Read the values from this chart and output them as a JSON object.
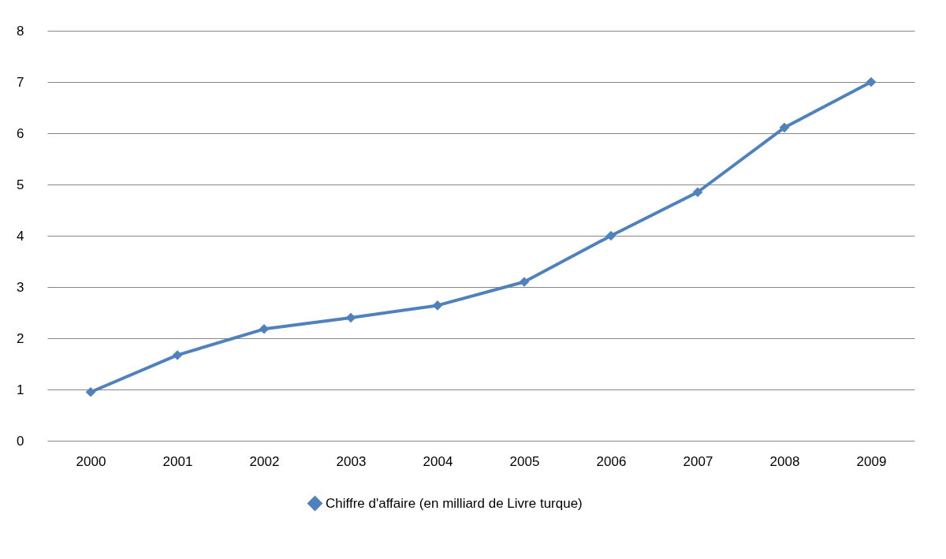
{
  "chart_data": {
    "type": "line",
    "categories": [
      "2000",
      "2001",
      "2002",
      "2003",
      "2004",
      "2005",
      "2006",
      "2007",
      "2008",
      "2009"
    ],
    "series": [
      {
        "name": "Chiffre d'affaire (en milliard de Livre turque)",
        "color": "#4f81bd",
        "values": [
          0.95,
          1.67,
          2.18,
          2.4,
          2.64,
          3.1,
          4.0,
          4.85,
          6.11,
          7.0
        ]
      }
    ],
    "ylim": [
      0,
      8
    ],
    "yticks": [
      0,
      1,
      2,
      3,
      4,
      5,
      6,
      7,
      8
    ],
    "grid": "y",
    "legend": "bottom",
    "marker": "diamond",
    "line_style": "solid"
  }
}
